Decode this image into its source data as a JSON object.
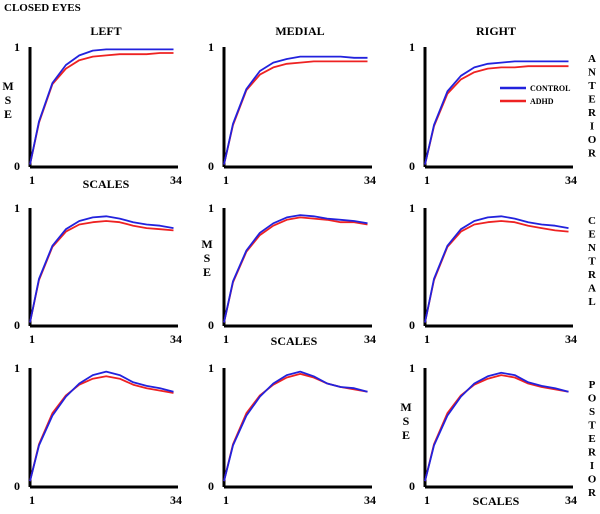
{
  "figure": {
    "title": "CLOSED EYES",
    "columns": [
      "LEFT",
      "MEDIAL",
      "RIGHT"
    ],
    "rows": [
      "ANTERIOR",
      "CENTRAL",
      "POSTERIOR"
    ],
    "ylabel": "MSE",
    "xlabel": "SCALES"
  },
  "colors": {
    "control": "#2222dd",
    "adhd": "#ee2222"
  },
  "chart_data": [
    {
      "type": "line",
      "row": "ANTERIOR",
      "column": "LEFT",
      "x": [
        1,
        3,
        6,
        9,
        12,
        15,
        18,
        21,
        24,
        27,
        30,
        33
      ],
      "xlim": [
        1,
        34
      ],
      "ylim": [
        0,
        1
      ],
      "xtick_labels": [
        "1",
        "34"
      ],
      "ytick_labels": [
        "0",
        "1"
      ],
      "xlabel": "SCALES",
      "ylabel": "MSE",
      "series": [
        {
          "name": "CONTROL",
          "values": [
            0.02,
            0.38,
            0.7,
            0.85,
            0.93,
            0.97,
            0.98,
            0.98,
            0.98,
            0.98,
            0.98,
            0.98
          ]
        },
        {
          "name": "ADHD",
          "values": [
            0.02,
            0.37,
            0.69,
            0.82,
            0.89,
            0.92,
            0.93,
            0.94,
            0.94,
            0.94,
            0.95,
            0.95
          ]
        }
      ]
    },
    {
      "type": "line",
      "row": "ANTERIOR",
      "column": "MEDIAL",
      "x": [
        1,
        3,
        6,
        9,
        12,
        15,
        18,
        21,
        24,
        27,
        30,
        33
      ],
      "xlim": [
        1,
        34
      ],
      "ylim": [
        0,
        1
      ],
      "xtick_labels": [
        "1",
        "34"
      ],
      "ytick_labels": [
        "0",
        "1"
      ],
      "series": [
        {
          "name": "CONTROL",
          "values": [
            0.02,
            0.36,
            0.65,
            0.8,
            0.87,
            0.9,
            0.92,
            0.92,
            0.92,
            0.92,
            0.91,
            0.91
          ]
        },
        {
          "name": "ADHD",
          "values": [
            0.02,
            0.35,
            0.64,
            0.77,
            0.83,
            0.86,
            0.87,
            0.88,
            0.88,
            0.88,
            0.88,
            0.88
          ]
        }
      ]
    },
    {
      "type": "line",
      "row": "ANTERIOR",
      "column": "RIGHT",
      "x": [
        1,
        3,
        6,
        9,
        12,
        15,
        18,
        21,
        24,
        27,
        30,
        33
      ],
      "xlim": [
        1,
        34
      ],
      "ylim": [
        0,
        1
      ],
      "xtick_labels": [
        "1",
        "34"
      ],
      "ytick_labels": [
        "0",
        "1"
      ],
      "legend": "right",
      "series": [
        {
          "name": "CONTROL",
          "values": [
            0.02,
            0.35,
            0.63,
            0.76,
            0.83,
            0.86,
            0.87,
            0.88,
            0.88,
            0.88,
            0.88,
            0.88
          ]
        },
        {
          "name": "ADHD",
          "values": [
            0.02,
            0.34,
            0.61,
            0.73,
            0.79,
            0.82,
            0.83,
            0.83,
            0.84,
            0.84,
            0.84,
            0.84
          ]
        }
      ]
    },
    {
      "type": "line",
      "row": "CENTRAL",
      "column": "LEFT",
      "x": [
        1,
        3,
        6,
        9,
        12,
        15,
        18,
        21,
        24,
        27,
        30,
        33
      ],
      "xlim": [
        1,
        34
      ],
      "ylim": [
        0,
        1
      ],
      "xtick_labels": [
        "1",
        "34"
      ],
      "ytick_labels": [
        "0",
        "1"
      ],
      "series": [
        {
          "name": "CONTROL",
          "values": [
            0.03,
            0.4,
            0.68,
            0.82,
            0.89,
            0.92,
            0.93,
            0.91,
            0.88,
            0.86,
            0.85,
            0.83
          ]
        },
        {
          "name": "ADHD",
          "values": [
            0.03,
            0.39,
            0.67,
            0.8,
            0.86,
            0.88,
            0.89,
            0.88,
            0.85,
            0.83,
            0.82,
            0.81
          ]
        }
      ]
    },
    {
      "type": "line",
      "row": "CENTRAL",
      "column": "MEDIAL",
      "x": [
        1,
        3,
        6,
        9,
        12,
        15,
        18,
        21,
        24,
        27,
        30,
        33
      ],
      "xlim": [
        1,
        34
      ],
      "ylim": [
        0,
        1
      ],
      "xtick_labels": [
        "1",
        "34"
      ],
      "ytick_labels": [
        "0",
        "1"
      ],
      "xlabel": "SCALES",
      "ylabel": "MSE",
      "series": [
        {
          "name": "CONTROL",
          "values": [
            0.03,
            0.38,
            0.64,
            0.79,
            0.87,
            0.92,
            0.94,
            0.93,
            0.91,
            0.9,
            0.89,
            0.87
          ]
        },
        {
          "name": "ADHD",
          "values": [
            0.03,
            0.37,
            0.63,
            0.77,
            0.85,
            0.9,
            0.92,
            0.91,
            0.9,
            0.88,
            0.88,
            0.86
          ]
        }
      ]
    },
    {
      "type": "line",
      "row": "CENTRAL",
      "column": "RIGHT",
      "x": [
        1,
        3,
        6,
        9,
        12,
        15,
        18,
        21,
        24,
        27,
        30,
        33
      ],
      "xlim": [
        1,
        34
      ],
      "ylim": [
        0,
        1
      ],
      "xtick_labels": [
        "1",
        "34"
      ],
      "ytick_labels": [
        "0",
        "1"
      ],
      "series": [
        {
          "name": "CONTROL",
          "values": [
            0.03,
            0.4,
            0.68,
            0.82,
            0.89,
            0.92,
            0.93,
            0.91,
            0.88,
            0.86,
            0.85,
            0.83
          ]
        },
        {
          "name": "ADHD",
          "values": [
            0.03,
            0.39,
            0.67,
            0.8,
            0.86,
            0.88,
            0.89,
            0.88,
            0.85,
            0.83,
            0.81,
            0.8
          ]
        }
      ]
    },
    {
      "type": "line",
      "row": "POSTERIOR",
      "column": "LEFT",
      "x": [
        1,
        3,
        6,
        9,
        12,
        15,
        18,
        21,
        24,
        27,
        30,
        33
      ],
      "xlim": [
        1,
        34
      ],
      "ylim": [
        0,
        1
      ],
      "xtick_labels": [
        "1",
        "34"
      ],
      "ytick_labels": [
        "0",
        "1"
      ],
      "series": [
        {
          "name": "CONTROL",
          "values": [
            0.05,
            0.35,
            0.6,
            0.76,
            0.87,
            0.94,
            0.97,
            0.94,
            0.88,
            0.85,
            0.83,
            0.8
          ]
        },
        {
          "name": "ADHD",
          "values": [
            0.05,
            0.36,
            0.62,
            0.77,
            0.86,
            0.91,
            0.93,
            0.91,
            0.86,
            0.83,
            0.81,
            0.79
          ]
        }
      ]
    },
    {
      "type": "line",
      "row": "POSTERIOR",
      "column": "MEDIAL",
      "x": [
        1,
        3,
        6,
        9,
        12,
        15,
        18,
        21,
        24,
        27,
        30,
        33
      ],
      "xlim": [
        1,
        34
      ],
      "ylim": [
        0,
        1
      ],
      "xtick_labels": [
        "1",
        "34"
      ],
      "ytick_labels": [
        "0",
        "1"
      ],
      "series": [
        {
          "name": "CONTROL",
          "values": [
            0.05,
            0.35,
            0.6,
            0.76,
            0.87,
            0.94,
            0.97,
            0.93,
            0.87,
            0.84,
            0.83,
            0.8
          ]
        },
        {
          "name": "ADHD",
          "values": [
            0.05,
            0.36,
            0.62,
            0.77,
            0.86,
            0.92,
            0.95,
            0.92,
            0.87,
            0.84,
            0.82,
            0.8
          ]
        }
      ]
    },
    {
      "type": "line",
      "row": "POSTERIOR",
      "column": "RIGHT",
      "x": [
        1,
        3,
        6,
        9,
        12,
        15,
        18,
        21,
        24,
        27,
        30,
        33
      ],
      "xlim": [
        1,
        34
      ],
      "ylim": [
        0,
        1
      ],
      "xtick_labels": [
        "1",
        "34"
      ],
      "ytick_labels": [
        "0",
        "1"
      ],
      "xlabel": "SCALES",
      "ylabel": "MSE",
      "series": [
        {
          "name": "CONTROL",
          "values": [
            0.05,
            0.35,
            0.6,
            0.76,
            0.87,
            0.93,
            0.96,
            0.94,
            0.88,
            0.85,
            0.83,
            0.8
          ]
        },
        {
          "name": "ADHD",
          "values": [
            0.05,
            0.36,
            0.62,
            0.77,
            0.86,
            0.91,
            0.94,
            0.92,
            0.87,
            0.84,
            0.82,
            0.8
          ]
        }
      ]
    }
  ]
}
